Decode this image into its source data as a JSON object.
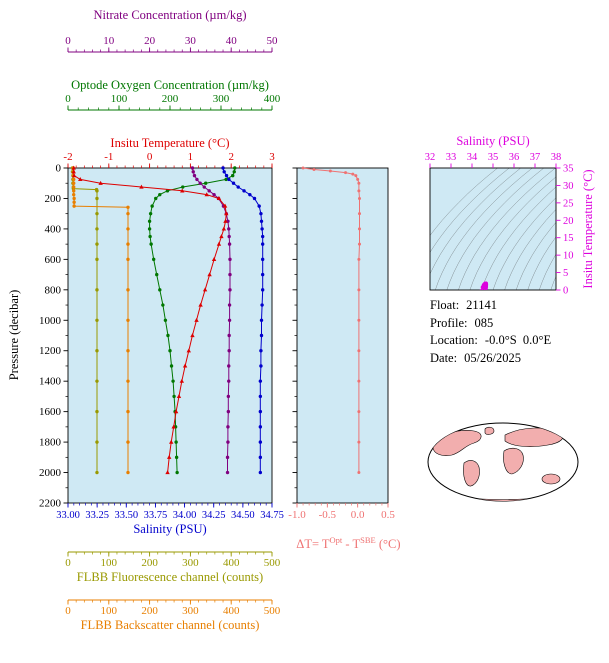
{
  "colors": {
    "nitrate": "#800080",
    "oxygen": "#007700",
    "temperature": "#dd0000",
    "salinity": "#0000cc",
    "fluorescence": "#999900",
    "backscatter": "#e87f00",
    "delta_t": "#ef7272",
    "ts": "#dd00dd",
    "plot_background": "#cfe9f4",
    "contour": "#444444",
    "map_land": "#f2aeae",
    "map_outline": "#000000"
  },
  "info": {
    "lines": [
      {
        "label": "Float:",
        "value": "21141"
      },
      {
        "label": "Profile:",
        "value": "085"
      },
      {
        "label": "Location:",
        "value": "-0.0°S  0.0°E"
      },
      {
        "label": "Date:",
        "value": "05/26/2025"
      }
    ]
  },
  "chart_data": {
    "type": "line",
    "description": "Profiling float vertical profiles vs pressure, optode-SBE temperature difference panel, T-S diagram with density contours, float info and world map",
    "panels": {
      "main": {
        "y_axis": {
          "title": "Pressure (decibar)",
          "range": [
            0,
            2200
          ],
          "ticks": [
            0,
            200,
            400,
            600,
            800,
            1000,
            1200,
            1400,
            1600,
            1800,
            2000,
            2200
          ],
          "tick_labels": [
            "0",
            "200",
            "400",
            "600",
            "800",
            "1000",
            "1200",
            "1400",
            "1600",
            "1800",
            "2000",
            "2200"
          ]
        },
        "x_axes": {
          "nitrate": {
            "title": "Nitrate Concentration (µm/kg)",
            "color": "#800080",
            "range": [
              0,
              50
            ],
            "ticks": [
              0,
              10,
              20,
              30,
              40,
              50
            ],
            "tick_labels": [
              "0",
              "10",
              "20",
              "30",
              "40",
              "50"
            ]
          },
          "oxygen": {
            "title": "Optode Oxygen Concentration (µm/kg)",
            "color": "#007700",
            "range": [
              0,
              400
            ],
            "ticks": [
              0,
              100,
              200,
              300,
              400
            ],
            "tick_labels": [
              "0",
              "100",
              "200",
              "300",
              "400"
            ]
          },
          "temperature": {
            "title": "Insitu Temperature (°C)",
            "color": "#dd0000",
            "range": [
              -2,
              3
            ],
            "ticks": [
              -2,
              -1,
              0,
              1,
              2,
              3
            ],
            "tick_labels": [
              "-2",
              "-1",
              "0",
              "1",
              "2",
              "3"
            ]
          },
          "salinity": {
            "title": "Salinity (PSU)",
            "color": "#0000cc",
            "range": [
              33.0,
              34.75
            ],
            "ticks": [
              33.0,
              33.25,
              33.5,
              33.75,
              34.0,
              34.25,
              34.5,
              34.75
            ],
            "tick_labels": [
              "33.00",
              "33.25",
              "33.50",
              "33.75",
              "34.00",
              "34.25",
              "34.50",
              "34.75"
            ]
          },
          "fluorescence": {
            "title": "FLBB Fluorescence channel (counts)",
            "color": "#999900",
            "range": [
              0,
              500
            ],
            "ticks": [
              0,
              100,
              200,
              300,
              400,
              500
            ],
            "tick_labels": [
              "0",
              "100",
              "200",
              "300",
              "400",
              "500"
            ]
          },
          "backscatter": {
            "title": "FLBB Backscatter channel (counts)",
            "color": "#e87f00",
            "range": [
              0,
              500
            ],
            "ticks": [
              0,
              100,
              200,
              300,
              400,
              500
            ],
            "tick_labels": [
              "0",
              "100",
              "200",
              "300",
              "400",
              "500"
            ]
          }
        },
        "series": [
          {
            "name": "fluorescence",
            "axis": "fluorescence",
            "color": "#999900",
            "marker": "circle",
            "pressure": [
              0,
              25,
              50,
              75,
              100,
              125,
              135,
              142,
              150,
              200,
              300,
              400,
              500,
              600,
              800,
              1000,
              1200,
              1400,
              1600,
              1800,
              2000
            ],
            "values": [
              11,
              11,
              12,
              12,
              12,
              13,
              13,
              70,
              71,
              71,
              71,
              71,
              71,
              71,
              71,
              71,
              71,
              71,
              71,
              71,
              71
            ]
          },
          {
            "name": "backscatter",
            "axis": "backscatter",
            "color": "#e87f00",
            "marker": "circle",
            "pressure": [
              0,
              25,
              50,
              75,
              100,
              125,
              150,
              175,
              200,
              225,
              250,
              258,
              300,
              400,
              500,
              600,
              800,
              1000,
              1200,
              1400,
              1600,
              1800,
              2000
            ],
            "values": [
              13,
              13,
              13,
              14,
              14,
              14,
              14,
              14,
              15,
              15,
              15,
              147,
              147,
              147,
              147,
              147,
              147,
              147,
              147,
              147,
              147,
              147,
              147
            ]
          },
          {
            "name": "oxygen",
            "axis": "oxygen",
            "color": "#007700",
            "marker": "circle",
            "pressure": [
              0,
              25,
              50,
              75,
              100,
              125,
              150,
              175,
              200,
              250,
              300,
              350,
              400,
              450,
              500,
              600,
              700,
              800,
              900,
              1000,
              1100,
              1200,
              1300,
              1400,
              1500,
              1600,
              1700,
              1800,
              1900,
              2000
            ],
            "values": [
              327,
              326,
              323,
              310,
              270,
              225,
              195,
              180,
              172,
              165,
              162,
              160,
              160,
              161,
              163,
              168,
              174,
              180,
              186,
              191,
              196,
              200,
              203,
              206,
              208,
              210,
              211,
              212,
              213,
              214
            ]
          },
          {
            "name": "nitrate",
            "axis": "nitrate",
            "color": "#800080",
            "marker": "circle",
            "pressure": [
              0,
              25,
              50,
              75,
              100,
              125,
              150,
              175,
              200,
              250,
              300,
              350,
              400,
              450,
              500,
              600,
              700,
              800,
              900,
              1000,
              1100,
              1200,
              1300,
              1400,
              1500,
              1600,
              1700,
              1800,
              1900,
              2000
            ],
            "values": [
              30.5,
              30.7,
              31.0,
              31.6,
              32.4,
              33.4,
              34.6,
              35.8,
              36.9,
              38.1,
              38.8,
              39.2,
              39.4,
              39.5,
              39.6,
              39.7,
              39.7,
              39.7,
              39.6,
              39.6,
              39.5,
              39.5,
              39.4,
              39.4,
              39.3,
              39.3,
              39.2,
              39.2,
              39.1,
              39.1
            ]
          },
          {
            "name": "salinity",
            "axis": "salinity",
            "color": "#0000cc",
            "marker": "circle",
            "pressure": [
              0,
              25,
              50,
              75,
              100,
              125,
              150,
              175,
              200,
              250,
              300,
              350,
              400,
              450,
              500,
              600,
              700,
              800,
              900,
              1000,
              1100,
              1200,
              1300,
              1400,
              1500,
              1600,
              1700,
              1800,
              1900,
              2000
            ],
            "values": [
              34.33,
              34.34,
              34.36,
              34.38,
              34.42,
              34.46,
              34.51,
              34.56,
              34.6,
              34.64,
              34.655,
              34.66,
              34.665,
              34.67,
              34.67,
              34.67,
              34.67,
              34.67,
              34.665,
              34.66,
              34.66,
              34.655,
              34.655,
              34.65,
              34.65,
              34.65,
              34.65,
              34.65,
              34.65,
              34.65
            ]
          },
          {
            "name": "temperature",
            "axis": "temperature",
            "color": "#dd0000",
            "marker": "triangle",
            "pressure": [
              0,
              25,
              50,
              75,
              100,
              125,
              150,
              175,
              200,
              250,
              300,
              350,
              400,
              450,
              500,
              600,
              700,
              800,
              900,
              1000,
              1100,
              1200,
              1300,
              1400,
              1500,
              1600,
              1700,
              1800,
              1900,
              2000
            ],
            "values": [
              -1.86,
              -1.86,
              -1.85,
              -1.7,
              -1.2,
              -0.2,
              0.8,
              1.4,
              1.7,
              1.85,
              1.88,
              1.86,
              1.82,
              1.76,
              1.7,
              1.58,
              1.47,
              1.36,
              1.25,
              1.15,
              1.05,
              0.96,
              0.87,
              0.79,
              0.72,
              0.65,
              0.59,
              0.53,
              0.48,
              0.44
            ]
          }
        ]
      },
      "delta": {
        "x_axis": {
          "title_parts": {
            "prefix": "ΔT= T",
            "sup1": "Opt",
            "mid": " - T",
            "sup2": "SBE",
            "suffix": " (°C)"
          },
          "color": "#ef7272",
          "range": [
            -1.0,
            0.5
          ],
          "ticks": [
            -1.0,
            -0.5,
            0.0,
            0.5
          ],
          "tick_labels": [
            "-1.0",
            "-0.5",
            "0.0",
            "0.5"
          ]
        },
        "series": {
          "pressure": [
            0,
            10,
            20,
            30,
            40,
            50,
            75,
            100,
            150,
            200,
            300,
            400,
            500,
            600,
            800,
            1000,
            1200,
            1400,
            1600,
            1800,
            2000
          ],
          "values": [
            -0.9,
            -0.72,
            -0.45,
            -0.2,
            -0.08,
            -0.03,
            0.0,
            0.02,
            0.02,
            0.03,
            0.03,
            0.03,
            0.03,
            0.02,
            0.02,
            0.02,
            0.02,
            0.02,
            0.02,
            0.02,
            0.02
          ]
        }
      },
      "ts": {
        "color": "#dd00dd",
        "x_axis": {
          "title": "Salinity (PSU)",
          "range": [
            32,
            38
          ],
          "ticks": [
            32,
            33,
            34,
            35,
            36,
            37,
            38
          ],
          "tick_labels": [
            "32",
            "33",
            "34",
            "35",
            "36",
            "37",
            "38"
          ]
        },
        "y_axis": {
          "title": "Insitu Temperature (°C)",
          "range": [
            0,
            35
          ],
          "ticks": [
            0,
            5,
            10,
            15,
            20,
            25,
            30,
            35
          ],
          "tick_labels": [
            "0",
            "5",
            "10",
            "15",
            "20",
            "25",
            "30",
            "35"
          ]
        },
        "contours": {
          "count": 14,
          "style": "isopycnal-like thin curves"
        }
      }
    }
  }
}
